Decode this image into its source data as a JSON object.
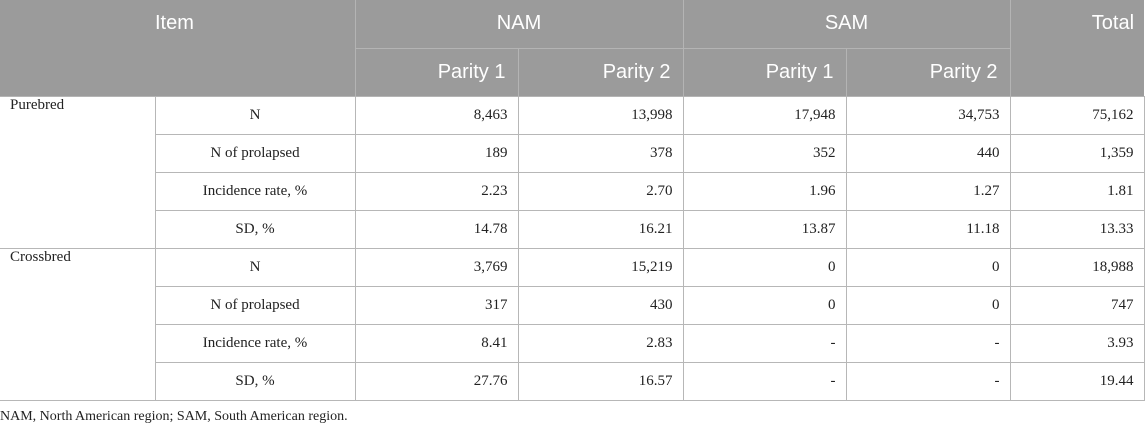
{
  "headers": {
    "item": "Item",
    "nam": "NAM",
    "sam": "SAM",
    "total": "Total",
    "parity1": "Parity 1",
    "parity2": "Parity 2"
  },
  "groups": [
    {
      "name": "Purebred",
      "rows": [
        {
          "label": "N",
          "nam_p1": "8,463",
          "nam_p2": "13,998",
          "sam_p1": "17,948",
          "sam_p2": "34,753",
          "total": "75,162"
        },
        {
          "label": "N of prolapsed",
          "nam_p1": "189",
          "nam_p2": "378",
          "sam_p1": "352",
          "sam_p2": "440",
          "total": "1,359"
        },
        {
          "label": "Incidence rate, %",
          "nam_p1": "2.23",
          "nam_p2": "2.70",
          "sam_p1": "1.96",
          "sam_p2": "1.27",
          "total": "1.81"
        },
        {
          "label": "SD, %",
          "nam_p1": "14.78",
          "nam_p2": "16.21",
          "sam_p1": "13.87",
          "sam_p2": "11.18",
          "total": "13.33"
        }
      ]
    },
    {
      "name": "Crossbred",
      "rows": [
        {
          "label": "N",
          "nam_p1": "3,769",
          "nam_p2": "15,219",
          "sam_p1": "0",
          "sam_p2": "0",
          "total": "18,988"
        },
        {
          "label": "N of prolapsed",
          "nam_p1": "317",
          "nam_p2": "430",
          "sam_p1": "0",
          "sam_p2": "0",
          "total": "747"
        },
        {
          "label": "Incidence rate, %",
          "nam_p1": "8.41",
          "nam_p2": "2.83",
          "sam_p1": "-",
          "sam_p2": "-",
          "total": "3.93"
        },
        {
          "label": "SD, %",
          "nam_p1": "27.76",
          "nam_p2": "16.57",
          "sam_p1": "-",
          "sam_p2": "-",
          "total": "19.44"
        }
      ]
    }
  ],
  "footnote": "NAM, North American region; SAM, South American region."
}
